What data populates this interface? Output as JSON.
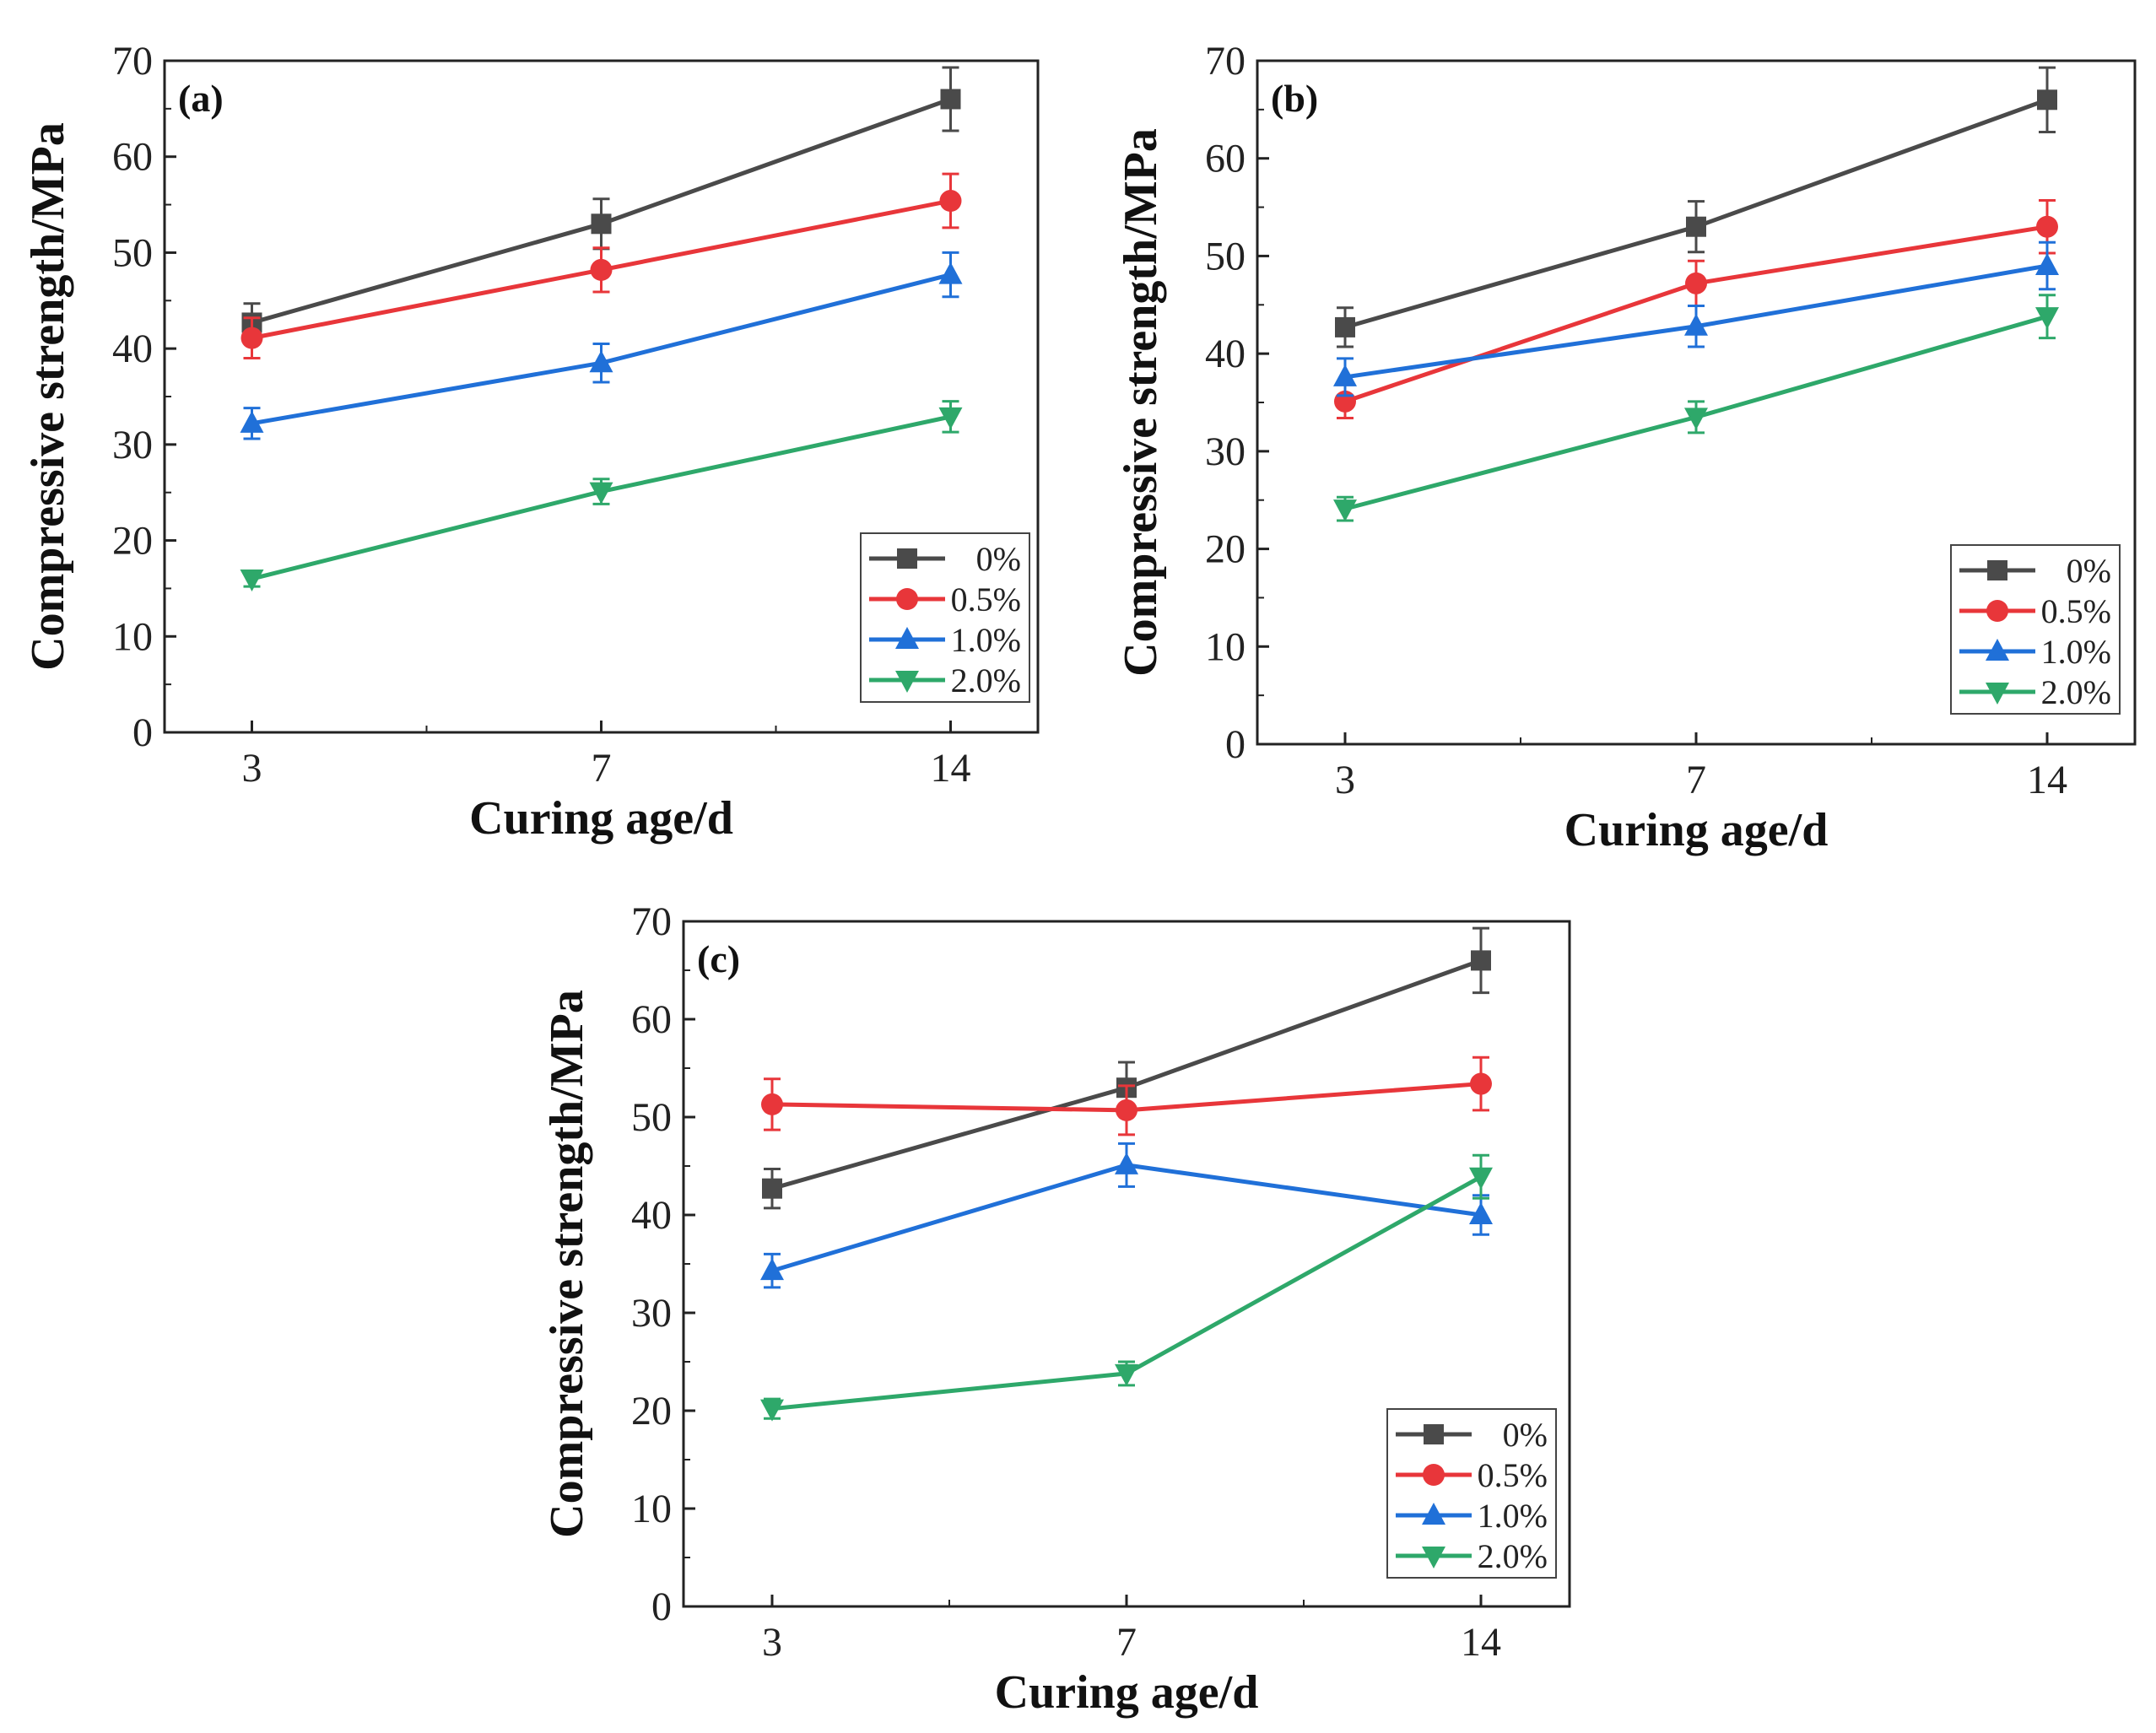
{
  "chart_data": [
    {
      "type": "line",
      "panel_label": "(a)",
      "xlabel": "Curing age/d",
      "ylabel": "Compressive strength/MPa",
      "categories": [
        "3",
        "7",
        "14"
      ],
      "ylim": [
        0,
        70
      ],
      "yticks": [
        "0",
        "10",
        "20",
        "30",
        "40",
        "50",
        "60",
        "70"
      ],
      "legend_position": "bottom-right",
      "series": [
        {
          "name": "0%",
          "color": "#4a4a4a",
          "marker": "square",
          "values": [
            42.7,
            53.0,
            66.0
          ],
          "errors": [
            2.0,
            2.6,
            3.3
          ]
        },
        {
          "name": "0.5%",
          "color": "#e8363a",
          "marker": "circle",
          "values": [
            41.1,
            48.2,
            55.4
          ],
          "errors": [
            2.1,
            2.3,
            2.8
          ]
        },
        {
          "name": "1.0%",
          "color": "#2070d8",
          "marker": "triangle-up",
          "values": [
            32.2,
            38.5,
            47.7
          ],
          "errors": [
            1.6,
            2.0,
            2.3
          ]
        },
        {
          "name": "2.0%",
          "color": "#2ea86a",
          "marker": "triangle-down",
          "values": [
            16.0,
            25.1,
            32.9
          ],
          "errors": [
            0.8,
            1.3,
            1.6
          ]
        }
      ]
    },
    {
      "type": "line",
      "panel_label": "(b)",
      "xlabel": "Curing age/d",
      "ylabel": "Compressive strength/MPa",
      "categories": [
        "3",
        "7",
        "14"
      ],
      "ylim": [
        0,
        70
      ],
      "yticks": [
        "0",
        "10",
        "20",
        "30",
        "40",
        "50",
        "60",
        "70"
      ],
      "legend_position": "bottom-right",
      "series": [
        {
          "name": "0%",
          "color": "#4a4a4a",
          "marker": "square",
          "values": [
            42.7,
            53.0,
            66.0
          ],
          "errors": [
            2.0,
            2.6,
            3.3
          ]
        },
        {
          "name": "0.5%",
          "color": "#e8363a",
          "marker": "circle",
          "values": [
            35.1,
            47.2,
            53.0
          ],
          "errors": [
            1.7,
            2.3,
            2.7
          ]
        },
        {
          "name": "1.0%",
          "color": "#2070d8",
          "marker": "triangle-up",
          "values": [
            37.6,
            42.8,
            49.0
          ],
          "errors": [
            1.9,
            2.1,
            2.4
          ]
        },
        {
          "name": "2.0%",
          "color": "#2ea86a",
          "marker": "triangle-down",
          "values": [
            24.1,
            33.5,
            43.8
          ],
          "errors": [
            1.2,
            1.6,
            2.2
          ]
        }
      ]
    },
    {
      "type": "line",
      "panel_label": "(c)",
      "xlabel": "Curing age/d",
      "ylabel": "Compressive strength/MPa",
      "categories": [
        "3",
        "7",
        "14"
      ],
      "ylim": [
        0,
        70
      ],
      "yticks": [
        "0",
        "10",
        "20",
        "30",
        "40",
        "50",
        "60",
        "70"
      ],
      "legend_position": "bottom-right",
      "series": [
        {
          "name": "0%",
          "color": "#4a4a4a",
          "marker": "square",
          "values": [
            42.7,
            53.0,
            66.0
          ],
          "errors": [
            2.0,
            2.6,
            3.3
          ]
        },
        {
          "name": "0.5%",
          "color": "#e8363a",
          "marker": "circle",
          "values": [
            51.3,
            50.7,
            53.4
          ],
          "errors": [
            2.6,
            2.5,
            2.7
          ]
        },
        {
          "name": "1.0%",
          "color": "#2070d8",
          "marker": "triangle-up",
          "values": [
            34.3,
            45.1,
            40.0
          ],
          "errors": [
            1.7,
            2.2,
            2.0
          ]
        },
        {
          "name": "2.0%",
          "color": "#2ea86a",
          "marker": "triangle-down",
          "values": [
            20.2,
            23.8,
            43.9
          ],
          "errors": [
            1.0,
            1.2,
            2.2
          ]
        }
      ]
    }
  ]
}
